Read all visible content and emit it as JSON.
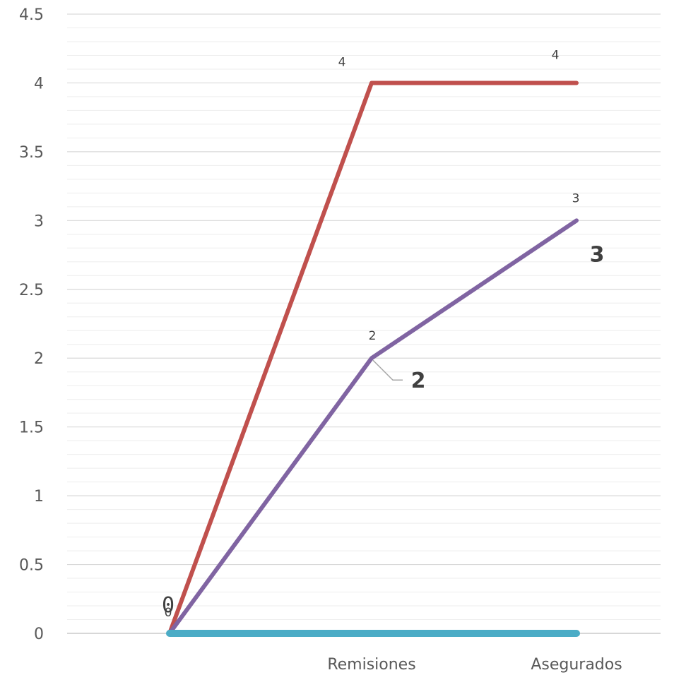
{
  "chart_data": {
    "type": "line",
    "categories": [
      "",
      "Remisiones",
      "Asegurados"
    ],
    "ylim": [
      0,
      4.5
    ],
    "ytick_labels": [
      "0",
      "0.5",
      "1",
      "1.5",
      "2",
      "2.5",
      "3",
      "3.5",
      "4",
      "4.5"
    ],
    "grid": true,
    "minor_grid": true,
    "series": [
      {
        "values": [
          0,
          4,
          4
        ],
        "color": "#c0504d",
        "labels": [
          "",
          "4",
          "4"
        ]
      },
      {
        "values": [
          0,
          2,
          3
        ],
        "color": "#8064a2",
        "labels": [
          "0",
          "2",
          "3"
        ],
        "bold_labels": [
          "",
          "2",
          "3"
        ]
      },
      {
        "values": [
          0,
          0,
          0
        ],
        "color": "#4bacc6",
        "labels": [
          "0",
          "",
          ""
        ]
      }
    ]
  }
}
